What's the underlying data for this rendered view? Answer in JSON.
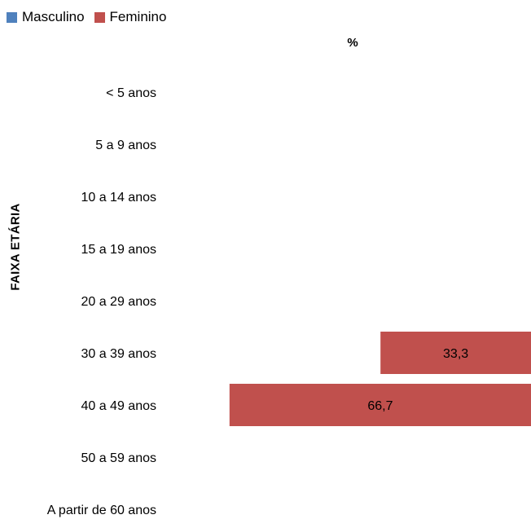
{
  "chart_data": {
    "type": "bar",
    "orientation": "horizontal",
    "stacked": true,
    "title": "",
    "xlabel": "%",
    "ylabel": "FAIXA ETÁRIA",
    "categories": [
      "< 5 anos",
      "5 a 9 anos",
      "10 a 14 anos",
      "15 a 19 anos",
      "20 a 29 anos",
      "30 a 39 anos",
      "40 a 49 anos",
      "50 a 59 anos",
      "A partir de 60 anos"
    ],
    "series": [
      {
        "name": "Masculino",
        "color": "#4f81bd",
        "values": [
          0,
          0,
          0,
          0,
          0,
          0,
          0,
          0,
          0
        ]
      },
      {
        "name": "Feminino",
        "color": "#c0504d",
        "values": [
          0,
          0,
          0,
          0,
          0,
          33.3,
          66.7,
          0,
          0
        ]
      }
    ],
    "data_labels": [
      "",
      "",
      "",
      "",
      "",
      "33,3",
      "66,7",
      "",
      ""
    ],
    "legend_position": "top-left",
    "grid": false
  }
}
